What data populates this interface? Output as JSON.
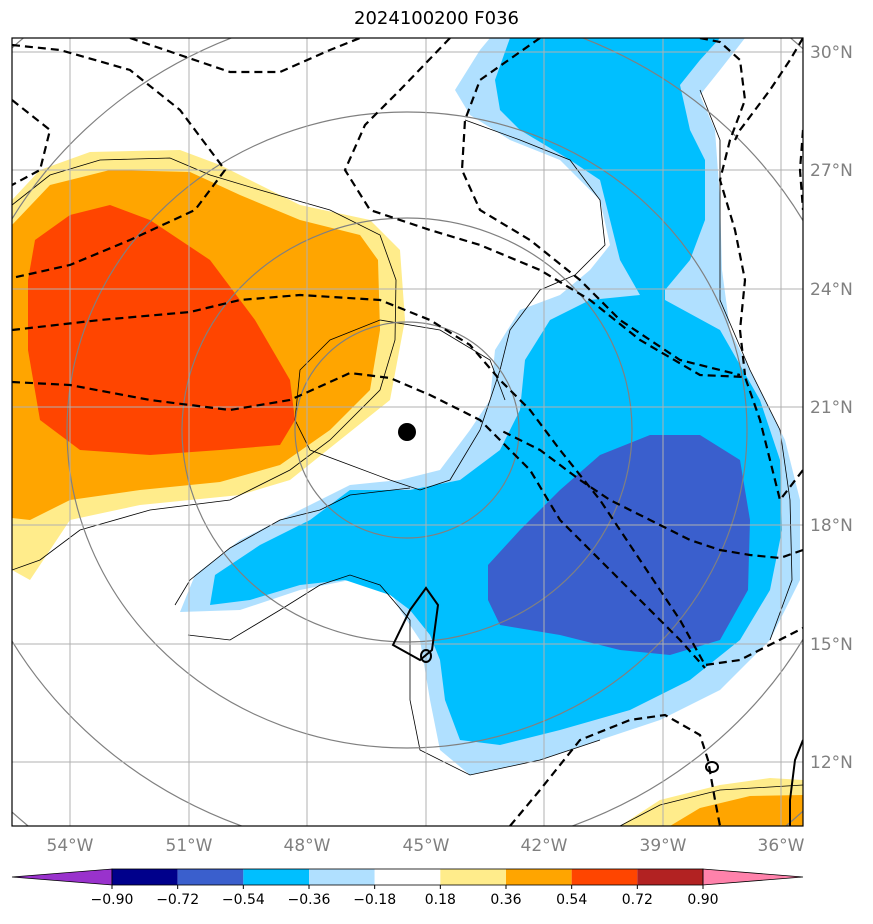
{
  "title": "2024100200 F036",
  "map": {
    "lon_range": [
      -55.4,
      -35.5
    ],
    "lat_range": [
      10.0,
      30.4
    ],
    "center_marker": {
      "lon": -45.4,
      "lat": 20.4
    },
    "lat_ticks": [
      {
        "value": 30,
        "label": "30°N"
      },
      {
        "value": 27,
        "label": "27°N"
      },
      {
        "value": 24,
        "label": "24°N"
      },
      {
        "value": 21,
        "label": "21°N"
      },
      {
        "value": 18,
        "label": "18°N"
      },
      {
        "value": 15,
        "label": "15°N"
      },
      {
        "value": 12,
        "label": "12°N"
      }
    ],
    "lon_ticks": [
      {
        "value": -54,
        "label": "54°W"
      },
      {
        "value": -51,
        "label": "51°W"
      },
      {
        "value": -48,
        "label": "48°W"
      },
      {
        "value": -45,
        "label": "45°W"
      },
      {
        "value": -42,
        "label": "42°W"
      },
      {
        "value": -39,
        "label": "39°W"
      },
      {
        "value": -36,
        "label": "36°W"
      }
    ],
    "grid": true
  },
  "colorbar": {
    "levels": [
      "−0.90",
      "−0.72",
      "−0.54",
      "−0.36",
      "−0.18",
      "0.18",
      "0.36",
      "0.54",
      "0.72",
      "0.90"
    ],
    "colors": [
      "#9932cc",
      "#00008b",
      "#3a5fcd",
      "#00bfff",
      "#b0e0ff",
      "#ffffff",
      "#ffec8b",
      "#ffa500",
      "#ff4500",
      "#b22222",
      "#ff82ab"
    ],
    "extend": "both"
  },
  "legend_colors": {
    "pos_high": "#ff4500",
    "pos_mid": "#ffa500",
    "pos_low": "#ffec8b",
    "neg_low": "#b0e0ff",
    "neg_mid": "#00bfff",
    "neg_high": "#3a5fcd",
    "grid": "#b0b0b0",
    "rings": "#808080"
  }
}
